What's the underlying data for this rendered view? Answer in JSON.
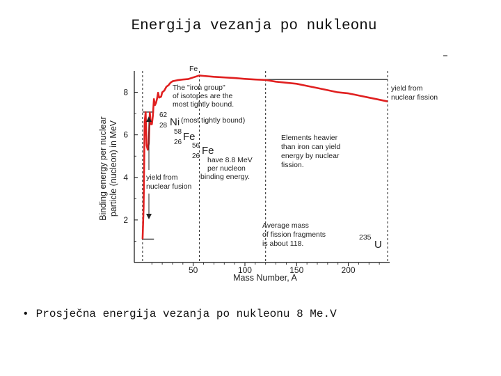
{
  "slide": {
    "title": "Energija vezanja po nukleonu",
    "bullet": "Prosječna energija vezanja po nukleonu 8 Me.V"
  },
  "chart_data": {
    "type": "line",
    "title": "",
    "xlabel": "Mass Number, A",
    "ylabel_line1": "Binding energy per nuclear",
    "ylabel_line2": "particle (nucleon) in MeV",
    "xlim": [
      -7,
      240
    ],
    "ylim": [
      0,
      9
    ],
    "x_ticks": [
      50,
      100,
      150,
      200
    ],
    "y_ticks": [
      2,
      4,
      6,
      8
    ],
    "series": [
      {
        "name": "",
        "color": "#e02020",
        "x": [
          1,
          2,
          3,
          4,
          5,
          6,
          7,
          8,
          9,
          10,
          11,
          12,
          13,
          14,
          15,
          16,
          17,
          18,
          19,
          20,
          22,
          24,
          26,
          28,
          30,
          35,
          40,
          45,
          50,
          56,
          60,
          70,
          80,
          90,
          100,
          110,
          120
        ],
        "y": [
          1.1,
          2.6,
          6.6,
          7.07,
          5.5,
          5.3,
          5.6,
          7.06,
          6.5,
          6.5,
          6.9,
          7.68,
          7.4,
          7.5,
          7.7,
          7.98,
          7.75,
          7.77,
          7.8,
          8.0,
          8.08,
          8.26,
          8.33,
          8.45,
          8.52,
          8.57,
          8.6,
          8.62,
          8.7,
          8.79,
          8.77,
          8.73,
          8.7,
          8.67,
          8.63,
          8.6,
          8.58
        ]
      },
      {
        "name": "",
        "color": "#e02020",
        "x": [
          120,
          130,
          140,
          150,
          160,
          170,
          180,
          190,
          200,
          210,
          220,
          230,
          238
        ],
        "y": [
          8.58,
          8.5,
          8.45,
          8.4,
          8.3,
          8.2,
          8.1,
          8.0,
          7.95,
          7.85,
          7.75,
          7.65,
          7.57
        ]
      }
    ],
    "reference_lines": [
      {
        "type": "vertical",
        "x": 56,
        "style": "dashed"
      },
      {
        "type": "vertical",
        "x": 120,
        "style": "dashed"
      },
      {
        "type": "vertical",
        "x": 238,
        "style": "dashed"
      },
      {
        "type": "vertical",
        "x": 1,
        "style": "dashed"
      },
      {
        "type": "horizontal",
        "y": 8.6,
        "from_x": 120,
        "to_x": 238
      },
      {
        "type": "horizontal",
        "y": 7.07,
        "from_x": 1,
        "to_x": 12
      },
      {
        "type": "horizontal",
        "y": 1.1,
        "from_x": 1,
        "to_x": 12
      }
    ],
    "annotations": {
      "top_label": "Fe",
      "iron_group": [
        "The \"iron group\"",
        "of isotopes are the",
        "most tightly bound."
      ],
      "ni_mass": "62",
      "ni_z": "28",
      "ni_symbol": "Ni",
      "ni_note": "(most tightly bound)",
      "fe58_mass": "58",
      "fe58_z": "26",
      "fe58_symbol": "Fe",
      "fe56_mass": "56",
      "fe56_z": "26",
      "fe56_symbol": "Fe",
      "fe56_note": [
        "have 8.8 MeV",
        "per nucleon",
        "binding energy."
      ],
      "heavier": [
        "Elements heavier",
        "than iron can yield",
        "energy by nuclear",
        "fission."
      ],
      "fission_yield": [
        "yield from",
        "nuclear fission"
      ],
      "fusion_yield": [
        "yield from",
        "nuclear fusion"
      ],
      "avg_mass": [
        "Average mass",
        "of fission fragments",
        "is about 118."
      ],
      "u_mass": "235",
      "u_symbol": "U"
    }
  }
}
